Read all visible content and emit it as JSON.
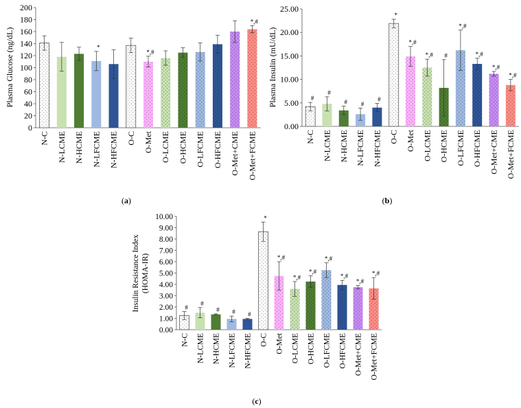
{
  "colors": {
    "N-C": "#ffffff",
    "N-LCME": "#c7e1b0",
    "N-HCME": "#4e7d33",
    "N-LFCME": "#9fb9e1",
    "N-HFCME": "#2f5597",
    "O-C": "#ffffff",
    "O-Met": "#ffb3ff",
    "O-LCME": "#c7e1b0",
    "O-HCME": "#4e7d33",
    "O-LFCME": "#9fb9e1",
    "O-HFCME": "#2f5597",
    "O-Met+CME": "#c58bf2",
    "O-Met+FCME": "#ff8c85"
  },
  "chart_data": [
    {
      "panel": "(a)",
      "type": "bar",
      "ylabel": "Plasma Glucose (ng/dL)",
      "ylim": [
        0,
        200
      ],
      "ytick_step": 20,
      "ytick_decimals": 0,
      "categories": [
        "N-C",
        "N-LCME",
        "N-HCME",
        "N-LFCME",
        "N-HFCME",
        "O-C",
        "O-Met",
        "O-LCME",
        "O-HCME",
        "O-LFCME",
        "O-HFCME",
        "O-Met+CME",
        "O-Met+FCME"
      ],
      "values": [
        141,
        118,
        123,
        111,
        106,
        137,
        110,
        116,
        125,
        126,
        139,
        160,
        164
      ],
      "errors": [
        12,
        24,
        11,
        16,
        24,
        12,
        9,
        12,
        8,
        15,
        15,
        18,
        6
      ],
      "annotations": [
        "",
        "",
        "",
        "*",
        "",
        "",
        "*,#",
        "",
        "",
        "",
        "",
        "",
        "*,#"
      ]
    },
    {
      "panel": "(b)",
      "type": "bar",
      "ylabel": "Plasma Insulin (mU/dL)",
      "ylim": [
        0,
        25
      ],
      "ytick_step": 5,
      "ytick_decimals": 2,
      "categories": [
        "N-C",
        "N-LCME",
        "N-HCME",
        "N-LFCME",
        "N-HFCME",
        "O-C",
        "O-Met",
        "O-LCME",
        "O-HCME",
        "O-LFCME",
        "O-HFCME",
        "O-Met+CME",
        "O-Met+FCME"
      ],
      "values": [
        4.2,
        4.8,
        3.4,
        2.6,
        4.0,
        21.9,
        14.9,
        12.5,
        8.2,
        16.2,
        13.3,
        11.2,
        8.8
      ],
      "errors": [
        0.9,
        1.5,
        0.9,
        1.3,
        0.9,
        0.9,
        2.1,
        1.8,
        6.0,
        4.3,
        1.2,
        0.5,
        1.2
      ],
      "annotations": [
        "#",
        "#",
        "#",
        "#",
        "#",
        "*",
        "*,#",
        "*,#",
        "#",
        "*,#",
        "*,#",
        "*,#",
        "*,#"
      ]
    },
    {
      "panel": "(c)",
      "type": "bar",
      "ylabel": "Insulin Resistance Index (HOMA-IR)",
      "ylabel_lines": [
        "Insulin Resistance Index",
        "(HOMA-IR)"
      ],
      "ylim": [
        0,
        10
      ],
      "ytick_step": 1,
      "ytick_decimals": 2,
      "categories": [
        "N-C",
        "N-LCME",
        "N-HCME",
        "N-LFCME",
        "N-HFCME",
        "O-C",
        "O-Met",
        "O-LCME",
        "O-HCME",
        "O-LFCME",
        "O-HFCME",
        "O-Met+CME",
        "O-Met+FCME"
      ],
      "values": [
        1.25,
        1.5,
        1.35,
        0.95,
        0.95,
        8.65,
        4.75,
        3.6,
        4.25,
        5.25,
        3.95,
        3.75,
        3.65
      ],
      "errors": [
        0.35,
        0.45,
        0.05,
        0.25,
        0.05,
        0.85,
        1.25,
        0.65,
        0.5,
        0.65,
        0.4,
        0.15,
        0.95
      ],
      "annotations": [
        "#",
        "#",
        "#",
        "#",
        "#",
        "*",
        "*,#",
        "*,#",
        "*,#",
        "*,#",
        "*,#",
        "*,#",
        "*,#"
      ]
    }
  ]
}
